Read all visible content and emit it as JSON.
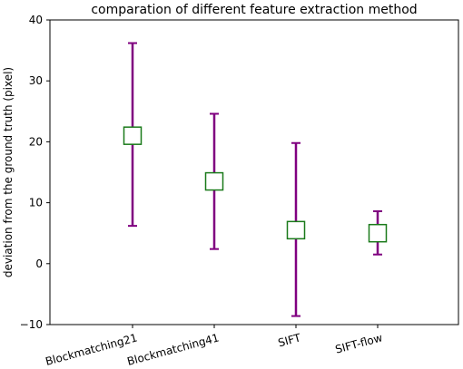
{
  "chart_data": {
    "type": "errorbar",
    "title": "comparation of different feature extraction method",
    "xlabel": "",
    "ylabel": "deviation from the ground truth (pixel)",
    "ylim": [
      -10,
      40
    ],
    "yticks": [
      "−10",
      "0",
      "10",
      "20",
      "30",
      "40"
    ],
    "categories": [
      "Blockmatching21",
      "Blockmatching41",
      "SIFT",
      "SIFT-flow"
    ],
    "series": [
      {
        "mean": [
          21.0,
          13.5,
          5.5,
          5.0
        ],
        "lower": [
          6.2,
          2.4,
          -8.6,
          1.5
        ],
        "upper": [
          36.2,
          24.6,
          19.8,
          8.6
        ]
      }
    ],
    "colors": {
      "errorbar": "#800080",
      "marker_edge": "#1a7a1a",
      "marker_face": "#ffffff"
    },
    "grid": false
  }
}
